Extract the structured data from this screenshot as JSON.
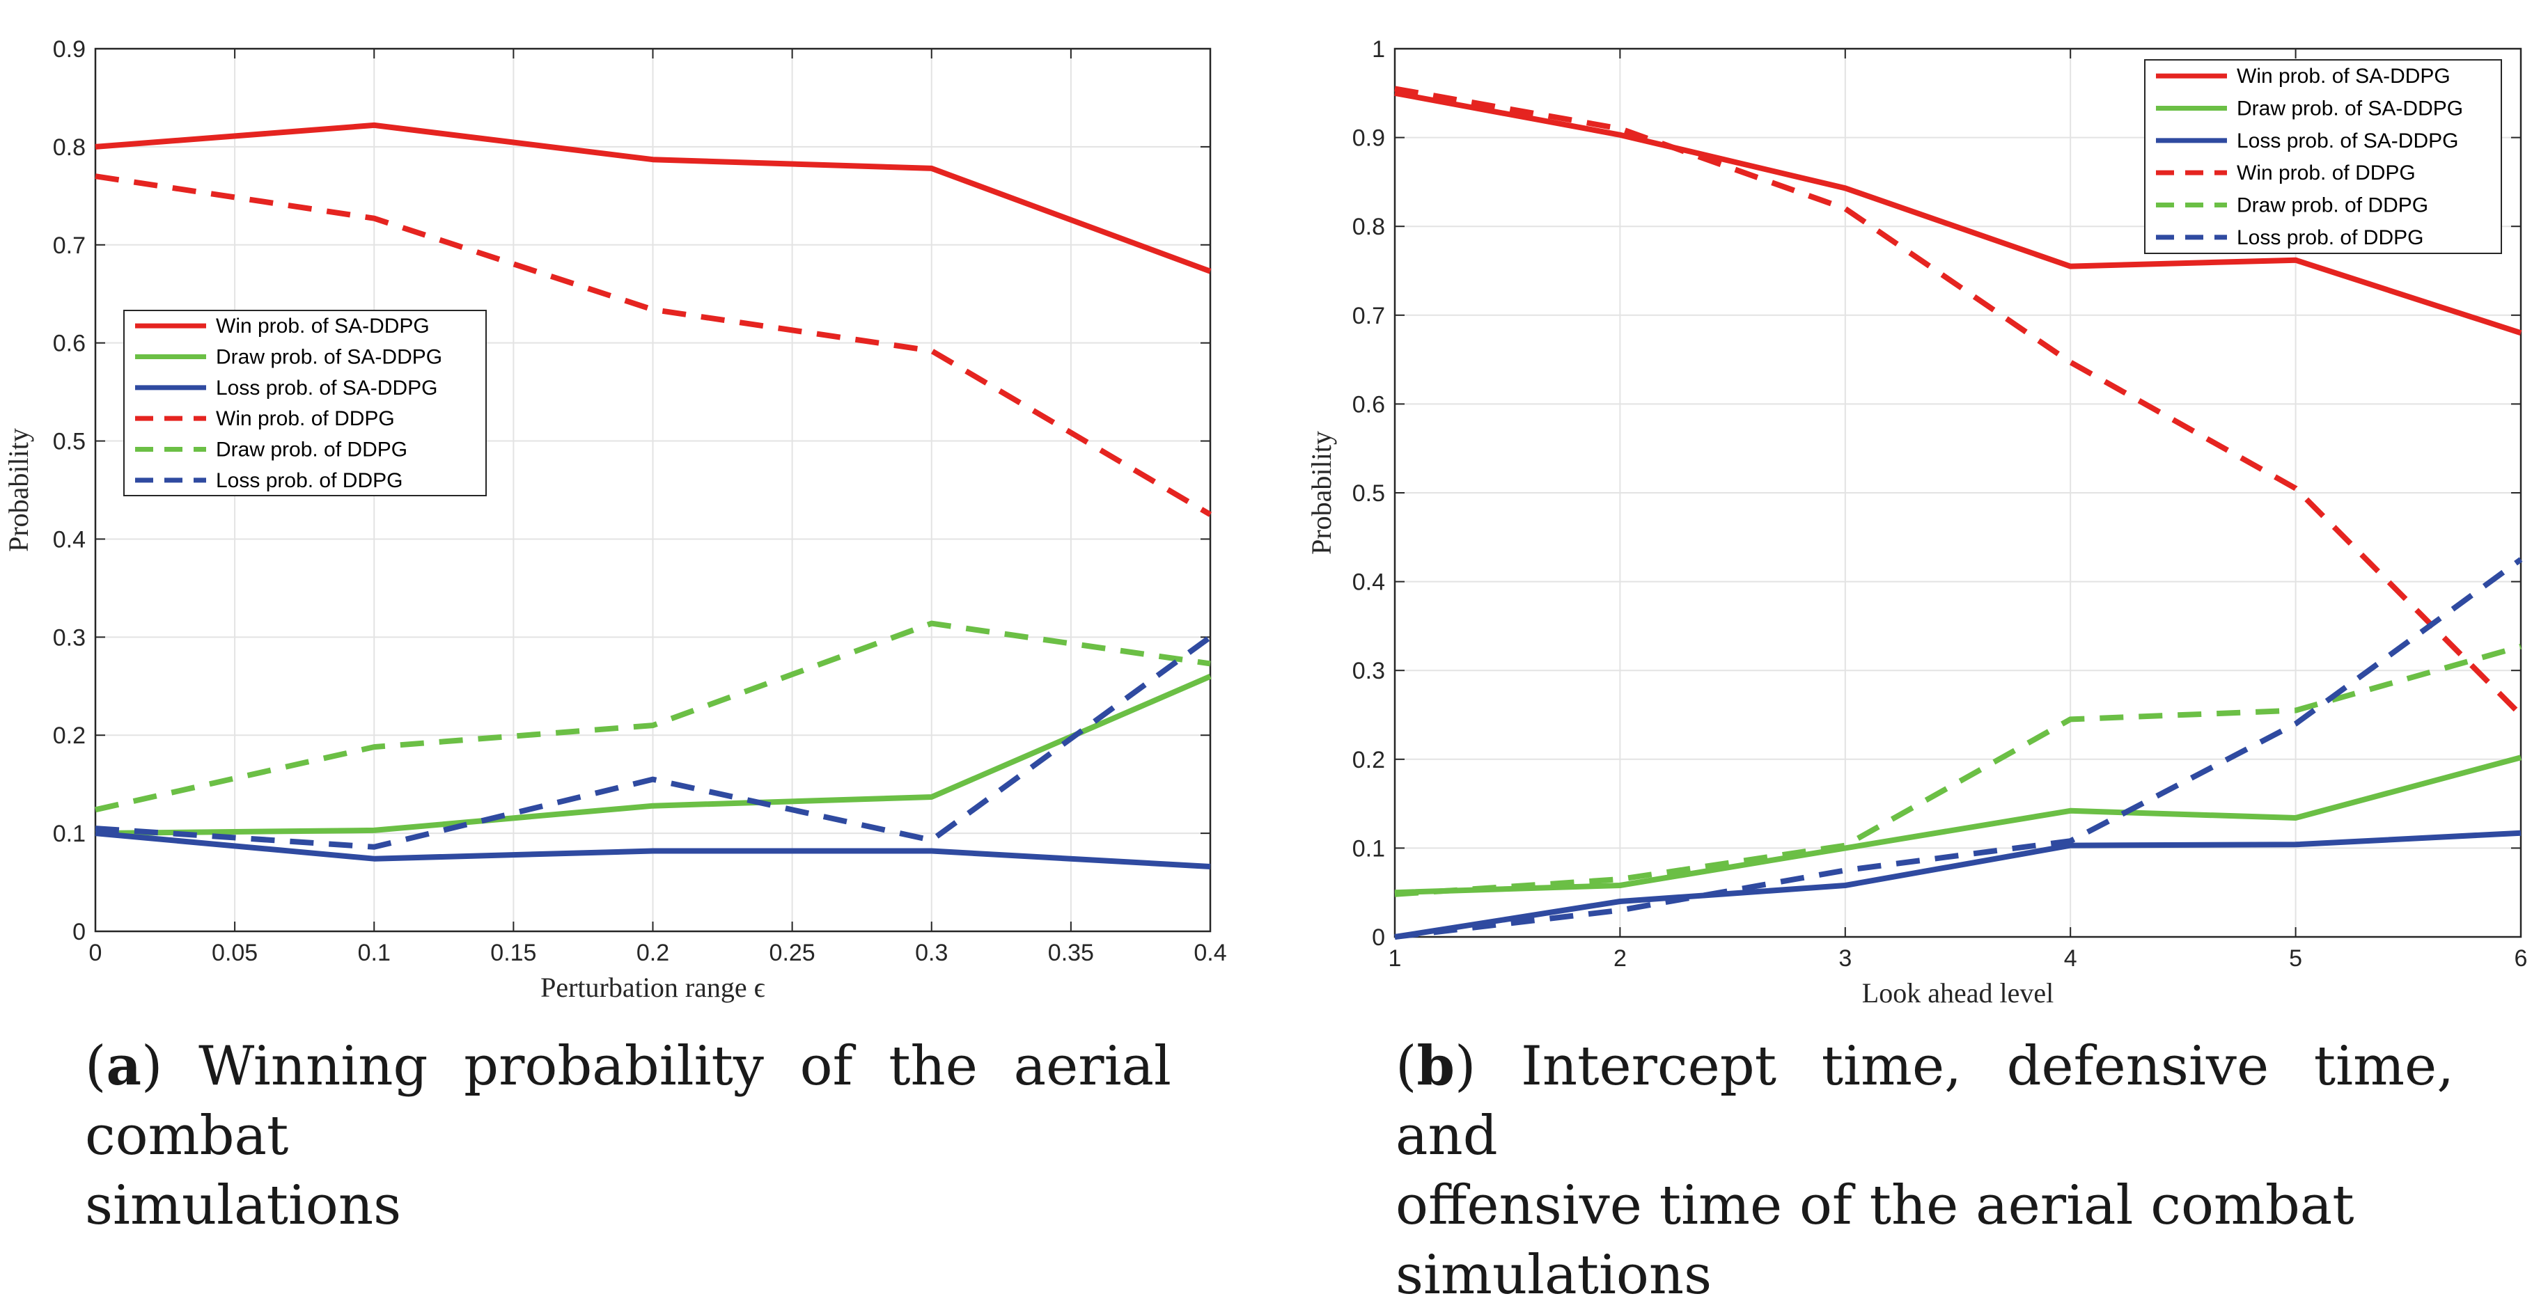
{
  "chart_data": [
    {
      "type": "line",
      "panel": "a",
      "xlabel": "Perturbation range ϵ",
      "ylabel": "Probability",
      "xlim": [
        0,
        0.4
      ],
      "ylim": [
        0,
        0.9
      ],
      "xticks": [
        0,
        0.05,
        0.1,
        0.15,
        0.2,
        0.25,
        0.3,
        0.35,
        0.4
      ],
      "xtick_labels": [
        "0",
        "0.05",
        "0.1",
        "0.15",
        "0.2",
        "0.25",
        "0.3",
        "0.35",
        "0.4"
      ],
      "yticks": [
        0,
        0.1,
        0.2,
        0.3,
        0.4,
        0.5,
        0.6,
        0.7,
        0.8,
        0.9
      ],
      "ytick_labels": [
        "0",
        "0.1",
        "0.2",
        "0.3",
        "0.4",
        "0.5",
        "0.6",
        "0.7",
        "0.8",
        "0.9"
      ],
      "grid": true,
      "legend_position": "center-left",
      "x": [
        0,
        0.1,
        0.2,
        0.3,
        0.4
      ],
      "series": [
        {
          "name": "Win prob. of SA-DDPG",
          "color": "#e52420",
          "style": "solid",
          "values": [
            0.8,
            0.822,
            0.787,
            0.778,
            0.673
          ]
        },
        {
          "name": "Draw prob. of SA-DDPG",
          "color": "#6bbf45",
          "style": "solid",
          "values": [
            0.1,
            0.103,
            0.128,
            0.137,
            0.26
          ]
        },
        {
          "name": "Loss prob. of SA-DDPG",
          "color": "#2f4aa0",
          "style": "solid",
          "values": [
            0.1,
            0.074,
            0.082,
            0.082,
            0.066
          ]
        },
        {
          "name": "Win prob. of DDPG",
          "color": "#e52420",
          "style": "dashed",
          "values": [
            0.77,
            0.727,
            0.634,
            0.592,
            0.425
          ]
        },
        {
          "name": "Draw prob. of DDPG",
          "color": "#6bbf45",
          "style": "dashed",
          "values": [
            0.124,
            0.188,
            0.21,
            0.314,
            0.273
          ]
        },
        {
          "name": "Loss prob. of DDPG",
          "color": "#2f4aa0",
          "style": "dashed",
          "values": [
            0.105,
            0.086,
            0.155,
            0.093,
            0.3
          ]
        }
      ]
    },
    {
      "type": "line",
      "panel": "b",
      "xlabel": "Look ahead level",
      "ylabel": "Probability",
      "xlim": [
        1,
        6
      ],
      "ylim": [
        0,
        1
      ],
      "xticks": [
        1,
        2,
        3,
        4,
        5,
        6
      ],
      "xtick_labels": [
        "1",
        "2",
        "3",
        "4",
        "5",
        "6"
      ],
      "yticks": [
        0,
        0.1,
        0.2,
        0.3,
        0.4,
        0.5,
        0.6,
        0.7,
        0.8,
        0.9,
        1
      ],
      "ytick_labels": [
        "0",
        "0.1",
        "0.2",
        "0.3",
        "0.4",
        "0.5",
        "0.6",
        "0.7",
        "0.8",
        "0.9",
        "1"
      ],
      "grid": true,
      "legend_position": "top-right",
      "x": [
        1,
        2,
        3,
        4,
        5,
        6
      ],
      "series": [
        {
          "name": "Win prob. of SA-DDPG",
          "color": "#e52420",
          "style": "solid",
          "values": [
            0.95,
            0.903,
            0.843,
            0.755,
            0.762,
            0.68
          ]
        },
        {
          "name": "Draw prob. of SA-DDPG",
          "color": "#6bbf45",
          "style": "solid",
          "values": [
            0.05,
            0.058,
            0.1,
            0.142,
            0.134,
            0.202
          ]
        },
        {
          "name": "Loss prob. of SA-DDPG",
          "color": "#2f4aa0",
          "style": "solid",
          "values": [
            0.0,
            0.04,
            0.058,
            0.103,
            0.104,
            0.117
          ]
        },
        {
          "name": "Win prob. of DDPG",
          "color": "#e52420",
          "style": "dashed",
          "values": [
            0.955,
            0.91,
            0.82,
            0.647,
            0.505,
            0.25
          ]
        },
        {
          "name": "Draw prob. of DDPG",
          "color": "#6bbf45",
          "style": "dashed",
          "values": [
            0.048,
            0.065,
            0.103,
            0.245,
            0.255,
            0.327
          ]
        },
        {
          "name": "Loss prob. of DDPG",
          "color": "#2f4aa0",
          "style": "dashed",
          "values": [
            0.0,
            0.03,
            0.075,
            0.108,
            0.24,
            0.425
          ]
        }
      ]
    }
  ],
  "captions": {
    "a": {
      "letter": "a",
      "line1": " Winning probability of the aerial combat",
      "line2": "simulations"
    },
    "b": {
      "letter": "b",
      "line1": " Intercept time, defensive time, and",
      "line2": "offensive time of the aerial combat simulations"
    }
  }
}
